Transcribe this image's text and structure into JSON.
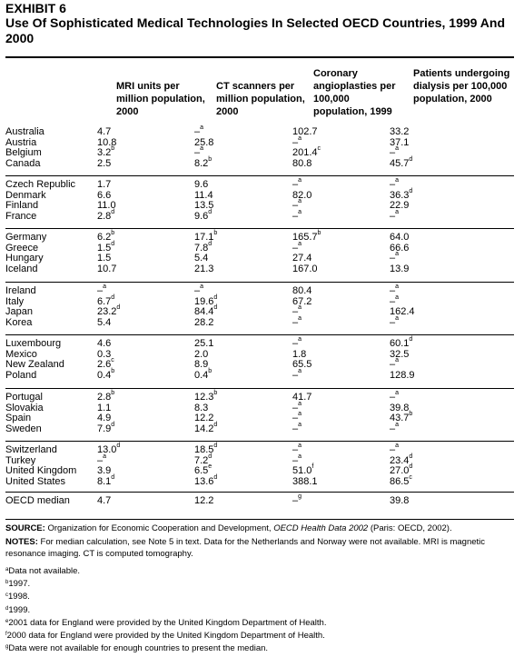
{
  "exhibit": "EXHIBIT 6",
  "title": "Use Of Sophisticated Medical Technologies In Selected OECD Countries, 1999 And 2000",
  "columns": [
    "MRI units per million population, 2000",
    "CT scanners per million population, 2000",
    "Coronary angioplasties per 100,000 population, 1999",
    "Patients undergoing dialysis per 100,000 population, 2000"
  ],
  "groups": [
    [
      {
        "country": "Australia",
        "mri": "4.7",
        "mri_n": "",
        "ct": "–",
        "ct_n": "a",
        "cor": "102.7",
        "cor_n": "",
        "dia": "33.2",
        "dia_n": ""
      },
      {
        "country": "Austria",
        "mri": "10.8",
        "mri_n": "",
        "ct": "25.8",
        "ct_n": "",
        "cor": "–",
        "cor_n": "a",
        "dia": "37.1",
        "dia_n": ""
      },
      {
        "country": "Belgium",
        "mri": "3.2",
        "mri_n": "b",
        "ct": "–",
        "ct_n": "a",
        "cor": "201.4",
        "cor_n": "c",
        "dia": "–",
        "dia_n": "a"
      },
      {
        "country": "Canada",
        "mri": "2.5",
        "mri_n": "",
        "ct": "8.2",
        "ct_n": "b",
        "cor": "80.8",
        "cor_n": "",
        "dia": "45.7",
        "dia_n": "d"
      }
    ],
    [
      {
        "country": "Czech Republic",
        "mri": "1.7",
        "mri_n": "",
        "ct": "9.6",
        "ct_n": "",
        "cor": "–",
        "cor_n": "a",
        "dia": "–",
        "dia_n": "a"
      },
      {
        "country": "Denmark",
        "mri": "6.6",
        "mri_n": "",
        "ct": "11.4",
        "ct_n": "",
        "cor": "82.0",
        "cor_n": "",
        "dia": "36.3",
        "dia_n": "d"
      },
      {
        "country": "Finland",
        "mri": "11.0",
        "mri_n": "",
        "ct": "13.5",
        "ct_n": "",
        "cor": "–",
        "cor_n": "a",
        "dia": "22.9",
        "dia_n": ""
      },
      {
        "country": "France",
        "mri": "2.8",
        "mri_n": "d",
        "ct": "9.6",
        "ct_n": "d",
        "cor": "–",
        "cor_n": "a",
        "dia": "–",
        "dia_n": "a"
      }
    ],
    [
      {
        "country": "Germany",
        "mri": "6.2",
        "mri_n": "b",
        "ct": "17.1",
        "ct_n": "b",
        "cor": "165.7",
        "cor_n": "b",
        "dia": "64.0",
        "dia_n": ""
      },
      {
        "country": "Greece",
        "mri": "1.5",
        "mri_n": "d",
        "ct": "7.8",
        "ct_n": "d",
        "cor": "–",
        "cor_n": "a",
        "dia": "66.6",
        "dia_n": ""
      },
      {
        "country": "Hungary",
        "mri": "1.5",
        "mri_n": "",
        "ct": "5.4",
        "ct_n": "",
        "cor": "27.4",
        "cor_n": "",
        "dia": "–",
        "dia_n": "a"
      },
      {
        "country": "Iceland",
        "mri": "10.7",
        "mri_n": "",
        "ct": "21.3",
        "ct_n": "",
        "cor": "167.0",
        "cor_n": "",
        "dia": "13.9",
        "dia_n": ""
      }
    ],
    [
      {
        "country": "Ireland",
        "mri": "–",
        "mri_n": "a",
        "ct": "–",
        "ct_n": "a",
        "cor": "80.4",
        "cor_n": "",
        "dia": "–",
        "dia_n": "a"
      },
      {
        "country": "Italy",
        "mri": "6.7",
        "mri_n": "d",
        "ct": "19.6",
        "ct_n": "d",
        "cor": "67.2",
        "cor_n": "",
        "dia": "–",
        "dia_n": "a"
      },
      {
        "country": "Japan",
        "mri": "23.2",
        "mri_n": "d",
        "ct": "84.4",
        "ct_n": "d",
        "cor": "–",
        "cor_n": "a",
        "dia": "162.4",
        "dia_n": ""
      },
      {
        "country": "Korea",
        "mri": "5.4",
        "mri_n": "",
        "ct": "28.2",
        "ct_n": "",
        "cor": "–",
        "cor_n": "a",
        "dia": "–",
        "dia_n": "a"
      }
    ],
    [
      {
        "country": "Luxembourg",
        "mri": "4.6",
        "mri_n": "",
        "ct": "25.1",
        "ct_n": "",
        "cor": "–",
        "cor_n": "a",
        "dia": "60.1",
        "dia_n": "d"
      },
      {
        "country": "Mexico",
        "mri": "0.3",
        "mri_n": "",
        "ct": "2.0",
        "ct_n": "",
        "cor": "1.8",
        "cor_n": "",
        "dia": "32.5",
        "dia_n": ""
      },
      {
        "country": "New Zealand",
        "mri": "2.6",
        "mri_n": "c",
        "ct": "8.9",
        "ct_n": "",
        "cor": "65.5",
        "cor_n": "",
        "dia": "–",
        "dia_n": "a"
      },
      {
        "country": "Poland",
        "mri": "0.4",
        "mri_n": "b",
        "ct": "0.4",
        "ct_n": "b",
        "cor": "–",
        "cor_n": "a",
        "dia": "128.9",
        "dia_n": ""
      }
    ],
    [
      {
        "country": "Portugal",
        "mri": "2.8",
        "mri_n": "b",
        "ct": "12.3",
        "ct_n": "b",
        "cor": "41.7",
        "cor_n": "",
        "dia": "–",
        "dia_n": "a"
      },
      {
        "country": "Slovakia",
        "mri": "1.1",
        "mri_n": "",
        "ct": "8.3",
        "ct_n": "",
        "cor": "–",
        "cor_n": "a",
        "dia": "39.8",
        "dia_n": ""
      },
      {
        "country": "Spain",
        "mri": "4.9",
        "mri_n": "",
        "ct": "12.2",
        "ct_n": "",
        "cor": "–",
        "cor_n": "a",
        "dia": "43.7",
        "dia_n": "b"
      },
      {
        "country": "Sweden",
        "mri": "7.9",
        "mri_n": "d",
        "ct": "14.2",
        "ct_n": "d",
        "cor": "–",
        "cor_n": "a",
        "dia": "–",
        "dia_n": "a"
      }
    ],
    [
      {
        "country": "Switzerland",
        "mri": "13.0",
        "mri_n": "d",
        "ct": "18.5",
        "ct_n": "d",
        "cor": "–",
        "cor_n": "a",
        "dia": "–",
        "dia_n": "a"
      },
      {
        "country": "Turkey",
        "mri": "–",
        "mri_n": "a",
        "ct": "7.2",
        "ct_n": "d",
        "cor": "–",
        "cor_n": "a",
        "dia": "23.4",
        "dia_n": "d"
      },
      {
        "country": "United Kingdom",
        "mri": "3.9",
        "mri_n": "",
        "ct": "6.5",
        "ct_n": "e",
        "cor": "51.0",
        "cor_n": "f",
        "dia": "27.0",
        "dia_n": "d"
      },
      {
        "country": "United States",
        "mri": "8.1",
        "mri_n": "d",
        "ct": "13.6",
        "ct_n": "d",
        "cor": "388.1",
        "cor_n": "",
        "dia": "86.5",
        "dia_n": "c"
      }
    ],
    [
      {
        "country": "OECD median",
        "mri": "4.7",
        "mri_n": "",
        "ct": "12.2",
        "ct_n": "",
        "cor": "–",
        "cor_n": "g",
        "dia": "39.8",
        "dia_n": ""
      }
    ]
  ],
  "source": {
    "label": "SOURCE:",
    "text_before": "Organization for Economic Cooperation and Development, ",
    "italic": "OECD Health Data 2002",
    "text_after": " (Paris: OECD, 2002)."
  },
  "notes": {
    "label": "NOTES:",
    "text": "For median calculation, see Note 5 in text. Data for the Netherlands and Norway were not available. MRI is magnetic resonance imaging. CT is computed tomography."
  },
  "footnotes": [
    {
      "mark": "a",
      "text": "Data not available."
    },
    {
      "mark": "b",
      "text": "1997."
    },
    {
      "mark": "c",
      "text": "1998."
    },
    {
      "mark": "d",
      "text": "1999."
    },
    {
      "mark": "e",
      "text": "2001 data for England were provided by the United Kingdom Department of Health."
    },
    {
      "mark": "f",
      "text": "2000 data for England were provided by the United Kingdom Department of Health."
    },
    {
      "mark": "g",
      "text": "Data were not available for enough countries to present the median."
    }
  ]
}
